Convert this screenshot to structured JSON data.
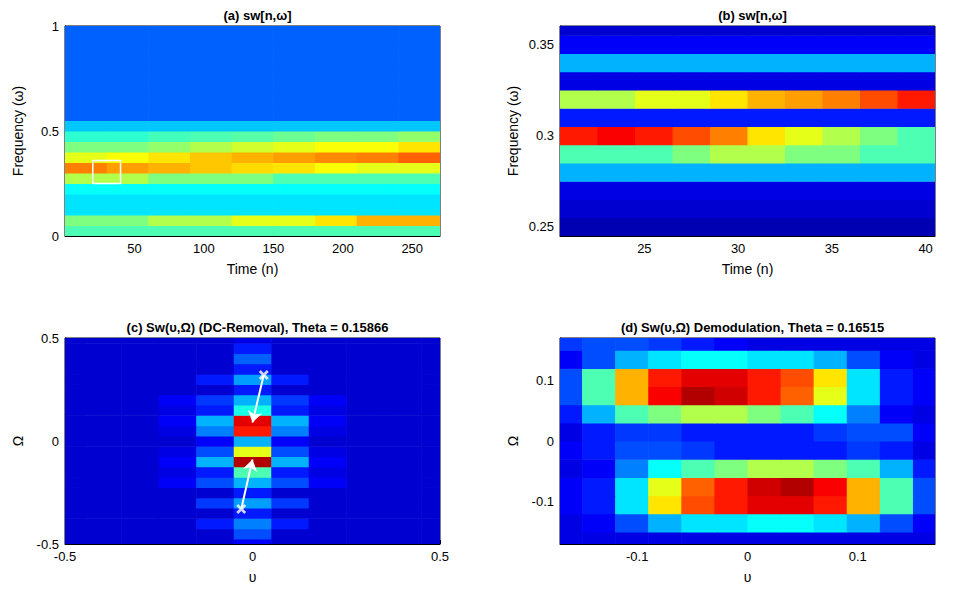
{
  "chart_data": [
    {
      "type": "heatmap",
      "title": "(a) sw[n,ω]",
      "x_label": "Time (n)",
      "y_label": "Frequency (ω)",
      "xlim": [
        0,
        270
      ],
      "ylim": [
        0,
        1
      ],
      "xticks": [
        50,
        100,
        150,
        200,
        250
      ],
      "yticks": [
        0,
        0.5,
        1
      ],
      "zlim": [
        0,
        1
      ],
      "x": [
        15,
        45,
        75,
        105,
        135,
        165,
        195,
        225,
        255
      ],
      "y": [
        0.025,
        0.075,
        0.125,
        0.175,
        0.225,
        0.275,
        0.325,
        0.375,
        0.425,
        0.475,
        0.525,
        0.575,
        0.625,
        0.675,
        0.725,
        0.775,
        0.825,
        0.875,
        0.925,
        0.975
      ],
      "z": [
        [
          0.45,
          0.45,
          0.45,
          0.45,
          0.45,
          0.45,
          0.45,
          0.45,
          0.45
        ],
        [
          0.5,
          0.5,
          0.55,
          0.55,
          0.6,
          0.6,
          0.65,
          0.7,
          0.7
        ],
        [
          0.35,
          0.35,
          0.35,
          0.35,
          0.35,
          0.35,
          0.35,
          0.35,
          0.35
        ],
        [
          0.35,
          0.35,
          0.35,
          0.35,
          0.35,
          0.35,
          0.35,
          0.35,
          0.35
        ],
        [
          0.38,
          0.38,
          0.38,
          0.38,
          0.38,
          0.38,
          0.38,
          0.38,
          0.38
        ],
        [
          0.55,
          0.55,
          0.5,
          0.5,
          0.5,
          0.45,
          0.45,
          0.45,
          0.45
        ],
        [
          0.75,
          0.72,
          0.7,
          0.68,
          0.66,
          0.65,
          0.62,
          0.6,
          0.6
        ],
        [
          0.6,
          0.62,
          0.65,
          0.68,
          0.7,
          0.72,
          0.74,
          0.75,
          0.78
        ],
        [
          0.5,
          0.5,
          0.52,
          0.55,
          0.58,
          0.6,
          0.62,
          0.62,
          0.65
        ],
        [
          0.42,
          0.42,
          0.44,
          0.45,
          0.46,
          0.48,
          0.5,
          0.5,
          0.52
        ],
        [
          0.32,
          0.32,
          0.32,
          0.32,
          0.32,
          0.32,
          0.32,
          0.32,
          0.32
        ],
        [
          0.22,
          0.22,
          0.22,
          0.22,
          0.22,
          0.22,
          0.22,
          0.22,
          0.22
        ],
        [
          0.22,
          0.22,
          0.22,
          0.22,
          0.22,
          0.22,
          0.22,
          0.22,
          0.22
        ],
        [
          0.22,
          0.22,
          0.22,
          0.22,
          0.22,
          0.22,
          0.22,
          0.22,
          0.22
        ],
        [
          0.22,
          0.22,
          0.22,
          0.22,
          0.22,
          0.22,
          0.22,
          0.22,
          0.22
        ],
        [
          0.22,
          0.22,
          0.22,
          0.22,
          0.22,
          0.22,
          0.22,
          0.22,
          0.22
        ],
        [
          0.22,
          0.22,
          0.22,
          0.22,
          0.22,
          0.22,
          0.22,
          0.22,
          0.22
        ],
        [
          0.22,
          0.22,
          0.22,
          0.22,
          0.22,
          0.22,
          0.22,
          0.22,
          0.22
        ],
        [
          0.22,
          0.22,
          0.22,
          0.22,
          0.22,
          0.22,
          0.22,
          0.22,
          0.22
        ],
        [
          0.22,
          0.22,
          0.22,
          0.22,
          0.22,
          0.22,
          0.22,
          0.22,
          0.22
        ]
      ],
      "annotations": [
        {
          "type": "box",
          "x": [
            20,
            40
          ],
          "y": [
            0.25,
            0.36
          ],
          "color": "#ffffff"
        }
      ]
    },
    {
      "type": "heatmap",
      "title": "(b) sw[n,ω]",
      "x_label": "Time (n)",
      "y_label": "Frequency (ω)",
      "xlim": [
        20.5,
        40.5
      ],
      "ylim": [
        0.245,
        0.36
      ],
      "xticks": [
        25,
        30,
        35,
        40
      ],
      "yticks": [
        0.25,
        0.3,
        0.35
      ],
      "zlim": [
        0,
        1
      ],
      "x": [
        21.5,
        23.5,
        25.5,
        27.5,
        29.5,
        31.5,
        33.5,
        35.5,
        37.5,
        39.5
      ],
      "y": [
        0.25,
        0.26,
        0.27,
        0.28,
        0.29,
        0.3,
        0.31,
        0.32,
        0.33,
        0.34,
        0.35,
        0.36
      ],
      "z": [
        [
          0.05,
          0.05,
          0.05,
          0.05,
          0.05,
          0.05,
          0.05,
          0.05,
          0.05,
          0.05
        ],
        [
          0.08,
          0.08,
          0.08,
          0.08,
          0.08,
          0.08,
          0.08,
          0.08,
          0.08,
          0.08
        ],
        [
          0.1,
          0.1,
          0.1,
          0.1,
          0.1,
          0.1,
          0.1,
          0.1,
          0.1,
          0.1
        ],
        [
          0.3,
          0.3,
          0.3,
          0.3,
          0.3,
          0.3,
          0.3,
          0.3,
          0.3,
          0.3
        ],
        [
          0.45,
          0.45,
          0.45,
          0.5,
          0.55,
          0.55,
          0.5,
          0.5,
          0.45,
          0.45
        ],
        [
          0.85,
          0.88,
          0.85,
          0.8,
          0.75,
          0.65,
          0.6,
          0.55,
          0.5,
          0.45
        ],
        [
          0.15,
          0.15,
          0.15,
          0.15,
          0.15,
          0.15,
          0.15,
          0.15,
          0.15,
          0.15
        ],
        [
          0.55,
          0.55,
          0.6,
          0.6,
          0.65,
          0.7,
          0.72,
          0.75,
          0.8,
          0.85
        ],
        [
          0.1,
          0.1,
          0.1,
          0.1,
          0.1,
          0.1,
          0.1,
          0.1,
          0.1,
          0.1
        ],
        [
          0.3,
          0.3,
          0.3,
          0.3,
          0.3,
          0.3,
          0.3,
          0.3,
          0.3,
          0.3
        ],
        [
          0.12,
          0.12,
          0.12,
          0.12,
          0.12,
          0.12,
          0.12,
          0.12,
          0.12,
          0.12
        ],
        [
          0.08,
          0.08,
          0.08,
          0.08,
          0.08,
          0.08,
          0.08,
          0.08,
          0.08,
          0.08
        ]
      ]
    },
    {
      "type": "heatmap",
      "title": "(c) Sw(υ,Ω) (DC-Removal), Theta = 0.15866",
      "x_label": "υ",
      "y_label": "Ω",
      "xlim": [
        -0.5,
        0.5
      ],
      "ylim": [
        -0.5,
        0.5
      ],
      "xticks": [
        -0.5,
        0,
        0.5
      ],
      "yticks": [
        -0.5,
        0,
        0.5
      ],
      "zlim": [
        0,
        1
      ],
      "x": [
        -0.5,
        -0.4,
        -0.3,
        -0.2,
        -0.1,
        0,
        0.1,
        0.2,
        0.3,
        0.4,
        0.5
      ],
      "y": [
        -0.5,
        -0.45,
        -0.4,
        -0.35,
        -0.3,
        -0.25,
        -0.2,
        -0.15,
        -0.1,
        -0.05,
        0,
        0.05,
        0.1,
        0.15,
        0.2,
        0.25,
        0.3,
        0.35,
        0.4,
        0.45,
        0.5
      ],
      "z": [
        [
          0.08,
          0.08,
          0.08,
          0.08,
          0.08,
          0.12,
          0.08,
          0.08,
          0.08,
          0.08,
          0.08
        ],
        [
          0.08,
          0.08,
          0.08,
          0.08,
          0.08,
          0.2,
          0.08,
          0.08,
          0.08,
          0.08,
          0.08
        ],
        [
          0.08,
          0.08,
          0.08,
          0.08,
          0.15,
          0.25,
          0.15,
          0.08,
          0.08,
          0.08,
          0.08
        ],
        [
          0.08,
          0.08,
          0.08,
          0.08,
          0.08,
          0.15,
          0.08,
          0.08,
          0.08,
          0.08,
          0.08
        ],
        [
          0.08,
          0.08,
          0.08,
          0.08,
          0.18,
          0.28,
          0.18,
          0.08,
          0.08,
          0.08,
          0.08
        ],
        [
          0.08,
          0.08,
          0.08,
          0.08,
          0.08,
          0.15,
          0.08,
          0.08,
          0.08,
          0.08,
          0.08
        ],
        [
          0.08,
          0.08,
          0.08,
          0.12,
          0.2,
          0.3,
          0.2,
          0.12,
          0.08,
          0.08,
          0.08
        ],
        [
          0.08,
          0.08,
          0.08,
          0.1,
          0.15,
          0.45,
          0.15,
          0.1,
          0.08,
          0.08,
          0.08
        ],
        [
          0.08,
          0.08,
          0.08,
          0.12,
          0.3,
          0.95,
          0.3,
          0.12,
          0.08,
          0.08,
          0.08
        ],
        [
          0.08,
          0.08,
          0.08,
          0.1,
          0.2,
          0.6,
          0.2,
          0.1,
          0.08,
          0.08,
          0.08
        ],
        [
          0.08,
          0.08,
          0.08,
          0.08,
          0.12,
          0.3,
          0.12,
          0.08,
          0.08,
          0.08,
          0.08
        ],
        [
          0.08,
          0.08,
          0.08,
          0.1,
          0.25,
          0.85,
          0.25,
          0.1,
          0.08,
          0.08,
          0.08
        ],
        [
          0.08,
          0.08,
          0.08,
          0.12,
          0.3,
          0.9,
          0.3,
          0.12,
          0.08,
          0.08,
          0.08
        ],
        [
          0.08,
          0.08,
          0.08,
          0.1,
          0.15,
          0.4,
          0.15,
          0.1,
          0.08,
          0.08,
          0.08
        ],
        [
          0.08,
          0.08,
          0.08,
          0.12,
          0.18,
          0.3,
          0.18,
          0.12,
          0.08,
          0.08,
          0.08
        ],
        [
          0.08,
          0.08,
          0.08,
          0.08,
          0.08,
          0.15,
          0.08,
          0.08,
          0.08,
          0.08,
          0.08
        ],
        [
          0.08,
          0.08,
          0.08,
          0.08,
          0.15,
          0.28,
          0.15,
          0.08,
          0.08,
          0.08,
          0.08
        ],
        [
          0.08,
          0.08,
          0.08,
          0.08,
          0.08,
          0.15,
          0.08,
          0.08,
          0.08,
          0.08,
          0.08
        ],
        [
          0.08,
          0.08,
          0.08,
          0.08,
          0.08,
          0.22,
          0.08,
          0.08,
          0.08,
          0.08,
          0.08
        ],
        [
          0.08,
          0.08,
          0.08,
          0.08,
          0.08,
          0.15,
          0.08,
          0.08,
          0.08,
          0.08,
          0.08
        ],
        [
          0.08,
          0.08,
          0.08,
          0.08,
          0.08,
          0.1,
          0.08,
          0.08,
          0.08,
          0.08,
          0.08
        ]
      ],
      "annotations": [
        {
          "type": "arrow",
          "from": [
            0.03,
            0.32
          ],
          "to": [
            0.0,
            0.09
          ],
          "marker": "x",
          "color": "#ffffff"
        },
        {
          "type": "arrow",
          "from": [
            -0.03,
            -0.33
          ],
          "to": [
            0.0,
            -0.09
          ],
          "marker": "x",
          "color": "#ffffff"
        }
      ]
    },
    {
      "type": "heatmap",
      "title": "(d) Sw(υ,Ω) Demodulation, Theta = 0.16515",
      "x_label": "υ",
      "y_label": "Ω",
      "xlim": [
        -0.17,
        0.17
      ],
      "ylim": [
        -0.17,
        0.17
      ],
      "xticks": [
        -0.1,
        0,
        0.1
      ],
      "yticks": [
        -0.1,
        0,
        0.1
      ],
      "zlim": [
        0,
        1
      ],
      "x": [
        -0.165,
        -0.135,
        -0.105,
        -0.075,
        -0.045,
        -0.015,
        0.015,
        0.045,
        0.075,
        0.105,
        0.135,
        0.165
      ],
      "y": [
        -0.165,
        -0.135,
        -0.105,
        -0.075,
        -0.045,
        -0.015,
        0.015,
        0.045,
        0.075,
        0.105,
        0.135,
        0.165
      ],
      "z": [
        [
          0.1,
          0.1,
          0.1,
          0.1,
          0.1,
          0.1,
          0.1,
          0.1,
          0.1,
          0.1,
          0.1,
          0.1
        ],
        [
          0.1,
          0.12,
          0.2,
          0.3,
          0.35,
          0.35,
          0.38,
          0.38,
          0.35,
          0.3,
          0.2,
          0.12
        ],
        [
          0.12,
          0.15,
          0.35,
          0.65,
          0.8,
          0.85,
          0.9,
          0.9,
          0.85,
          0.7,
          0.45,
          0.2
        ],
        [
          0.12,
          0.15,
          0.35,
          0.6,
          0.78,
          0.85,
          0.92,
          0.95,
          0.88,
          0.7,
          0.45,
          0.2
        ],
        [
          0.1,
          0.12,
          0.25,
          0.38,
          0.45,
          0.5,
          0.55,
          0.55,
          0.5,
          0.45,
          0.3,
          0.15
        ],
        [
          0.12,
          0.15,
          0.2,
          0.2,
          0.18,
          0.15,
          0.15,
          0.15,
          0.15,
          0.18,
          0.15,
          0.1
        ],
        [
          0.1,
          0.15,
          0.18,
          0.18,
          0.15,
          0.15,
          0.15,
          0.15,
          0.18,
          0.2,
          0.2,
          0.12
        ],
        [
          0.15,
          0.3,
          0.45,
          0.5,
          0.55,
          0.55,
          0.5,
          0.45,
          0.38,
          0.25,
          0.12,
          0.1
        ],
        [
          0.2,
          0.45,
          0.7,
          0.88,
          0.95,
          0.92,
          0.85,
          0.78,
          0.6,
          0.35,
          0.15,
          0.12
        ],
        [
          0.2,
          0.45,
          0.7,
          0.85,
          0.9,
          0.9,
          0.85,
          0.8,
          0.65,
          0.35,
          0.15,
          0.12
        ],
        [
          0.12,
          0.2,
          0.3,
          0.35,
          0.38,
          0.38,
          0.35,
          0.35,
          0.3,
          0.2,
          0.12,
          0.1
        ],
        [
          0.18,
          0.2,
          0.2,
          0.18,
          0.15,
          0.12,
          0.1,
          0.1,
          0.1,
          0.1,
          0.1,
          0.1
        ]
      ]
    }
  ]
}
